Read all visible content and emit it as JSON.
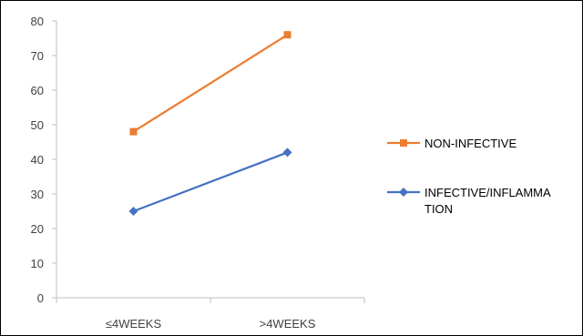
{
  "chart_data": {
    "type": "line",
    "title": "",
    "xlabel": "",
    "ylabel": "",
    "categories": [
      "≤4WEEKS",
      ">4WEEKS"
    ],
    "ylim": [
      0,
      80
    ],
    "yticks": [
      0,
      10,
      20,
      30,
      40,
      50,
      60,
      70,
      80
    ],
    "grid": false,
    "legend_position": "right",
    "series": [
      {
        "name": "NON-INFECTIVE",
        "values": [
          48,
          76
        ],
        "color": "#ED7D31",
        "marker": "square"
      },
      {
        "name": "INFECTIVE/INFLAMMATION",
        "name_lines": [
          "INFECTIVE/INFLAMMA",
          "TION"
        ],
        "values": [
          25,
          42
        ],
        "color": "#4472C4",
        "marker": "diamond"
      }
    ]
  }
}
